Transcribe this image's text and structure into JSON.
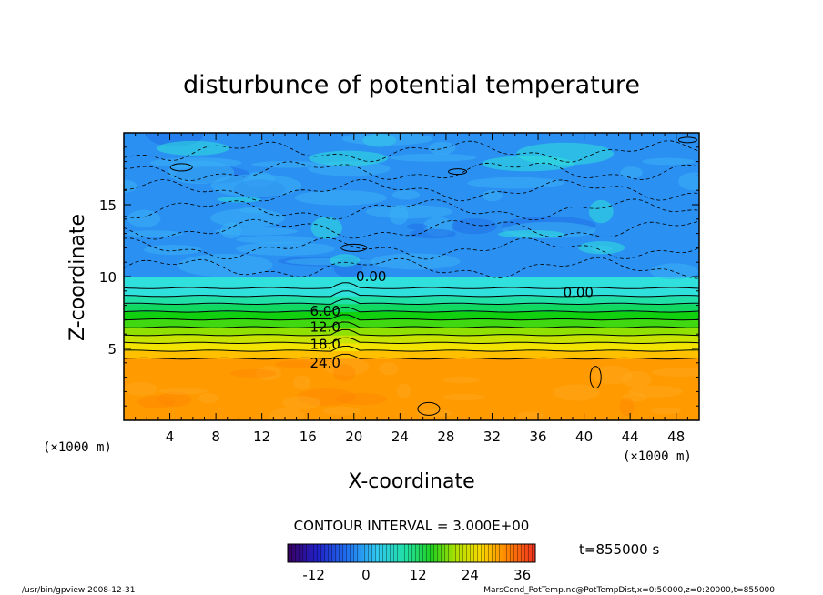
{
  "chart_data": {
    "type": "heatmap",
    "title": "disturbunce of potential temperature",
    "xlabel": "X-coordinate",
    "ylabel": "Z-coordinate",
    "x_unit": "(×1000 m)",
    "z_unit": "(×1000 m)",
    "xlim": [
      0,
      50
    ],
    "ylim": [
      0,
      20
    ],
    "x_ticks": [
      4,
      8,
      12,
      16,
      20,
      24,
      28,
      32,
      36,
      40,
      44,
      48
    ],
    "y_ticks": [
      5,
      10,
      15
    ],
    "contour_interval_text": "CONTOUR INTERVAL = 3.000E+00",
    "contour_labels": [
      {
        "text": "0.00",
        "x": 21.5,
        "z": 10.0
      },
      {
        "text": "0.00",
        "x": 39.5,
        "z": 8.9
      },
      {
        "text": "6.00",
        "x": 17.5,
        "z": 7.6
      },
      {
        "text": "12.0",
        "x": 17.5,
        "z": 6.5
      },
      {
        "text": "18.0",
        "x": 17.5,
        "z": 5.3
      },
      {
        "text": "24.0",
        "x": 17.5,
        "z": 4.0
      }
    ],
    "layers": [
      {
        "name": "",
        "z_bottom": 10.0,
        "z_top": 20.0,
        "value_range": [
          -9,
          -3
        ]
      },
      {
        "name": "",
        "z_bottom": 4.3,
        "z_top": 9.2,
        "value_range": [
          0,
          24
        ]
      },
      {
        "name": "",
        "z_bottom": 0.0,
        "z_top": 4.3,
        "value_range": [
          27,
          33
        ]
      }
    ],
    "colorbar": {
      "ticks": [
        -12,
        0,
        12,
        24,
        36
      ],
      "min": -18,
      "max": 39
    },
    "colors": {
      "deep_blue": "#1f6fe8",
      "light_blue": "#3ab0f5",
      "cyan": "#2fe0dc",
      "green": "#10d010",
      "yellow": "#f2e400",
      "orange": "#ff9a00"
    }
  },
  "time_text": "t=855000 s",
  "footer": {
    "left": "/usr/bin/gpview   2008-12-31",
    "right": "MarsCond_PotTemp.nc@PotTempDist,x=0:50000,z=0:20000,t=855000"
  }
}
